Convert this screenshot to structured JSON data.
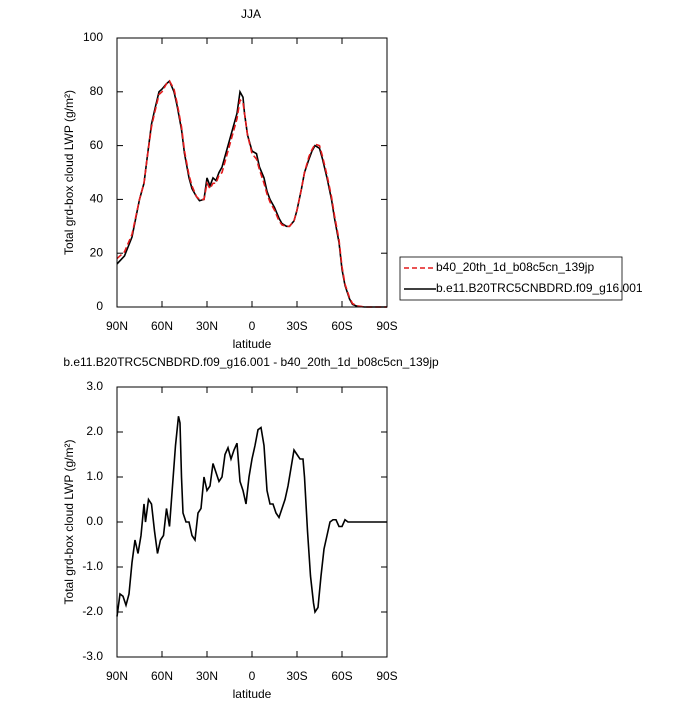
{
  "chart_data": [
    {
      "type": "line",
      "title": "JJA",
      "x_label": "latitude",
      "y_label": "Total grd-box cloud LWP (g/m²)",
      "x": [
        90,
        85,
        80,
        75,
        72,
        70,
        67,
        65,
        62,
        60,
        57,
        55,
        52,
        50,
        47,
        45,
        42,
        40,
        37,
        35,
        32,
        30,
        28,
        26,
        24,
        22,
        20,
        17,
        15,
        12,
        10,
        8,
        6,
        5,
        3,
        0,
        -3,
        -5,
        -8,
        -10,
        -12,
        -15,
        -18,
        -20,
        -23,
        -25,
        -28,
        -30,
        -33,
        -35,
        -38,
        -40,
        -42,
        -45,
        -47,
        -50,
        -53,
        -55,
        -58,
        -60,
        -62,
        -65,
        -67,
        -70,
        -75,
        -80,
        -85,
        -90
      ],
      "xlim": [
        90,
        -90
      ],
      "xticks": [
        {
          "value": 90,
          "label": "90N"
        },
        {
          "value": 60,
          "label": "60N"
        },
        {
          "value": 30,
          "label": "30N"
        },
        0,
        {
          "value": -30,
          "label": "30S"
        },
        {
          "value": -60,
          "label": "60S"
        },
        {
          "value": -90,
          "label": "90S"
        }
      ],
      "ylim": [
        0,
        100
      ],
      "yticks": [
        0,
        20,
        40,
        60,
        80,
        100
      ],
      "legend": "right",
      "series": [
        {
          "name": "b40_20th_1d_b08c5cn_139jp",
          "color": "#e31a1c",
          "linestyle": "dashed",
          "values": [
            18,
            20.5,
            27,
            40,
            46,
            55,
            67,
            72,
            79,
            80,
            83,
            84,
            81,
            76,
            67,
            58,
            49,
            45,
            41,
            40,
            40,
            46,
            44,
            46,
            46,
            49,
            50,
            56,
            60,
            66,
            70,
            77,
            76,
            72,
            64,
            57,
            55,
            51,
            46,
            42,
            39,
            36,
            32,
            30.5,
            30,
            30,
            32,
            36,
            44,
            50,
            56,
            58.5,
            60.5,
            60,
            56,
            49,
            41,
            34,
            25,
            15,
            8.5,
            3.5,
            1.3,
            0.4,
            0,
            0,
            0,
            0
          ]
        },
        {
          "name": "b.e11.B20TRC5CNBDRD.f09_g16.001",
          "color": "#000000",
          "linestyle": "solid",
          "values": [
            16,
            19,
            26,
            40,
            46,
            55,
            68,
            73,
            80,
            81,
            83,
            84,
            80,
            75,
            66,
            57,
            48,
            44,
            41,
            39.5,
            40,
            48,
            45,
            48,
            47,
            50,
            52,
            58,
            62,
            68,
            72,
            80,
            78,
            72,
            64,
            58,
            57,
            52,
            48,
            43,
            40,
            37,
            33,
            31,
            30,
            30,
            32,
            36,
            44,
            50,
            55,
            58,
            60,
            59,
            55,
            48,
            40,
            33,
            24,
            14,
            8,
            3,
            1,
            0.3,
            0,
            0,
            0,
            0
          ]
        }
      ]
    },
    {
      "type": "line",
      "title": "b.e11.B20TRC5CNBDRD.f09_g16.001 - b40_20th_1d_b08c5cn_139jp",
      "x_label": "latitude",
      "y_label": "Total grd-box cloud LWP (g/m²)",
      "x": [
        90,
        88,
        86,
        84,
        82,
        80,
        78,
        76,
        74,
        72,
        71,
        69,
        67,
        65,
        63,
        61,
        59,
        57,
        55,
        53,
        51,
        49,
        48,
        47,
        46,
        44,
        42,
        40,
        38,
        36,
        34,
        32,
        30,
        28,
        26,
        24,
        22,
        20,
        18,
        16,
        14,
        12,
        10,
        8,
        6,
        4,
        2,
        0,
        -2,
        -4,
        -6,
        -8,
        -10,
        -12,
        -14,
        -16,
        -18,
        -20,
        -22,
        -24,
        -26,
        -28,
        -30,
        -32,
        -34,
        -35,
        -37,
        -39,
        -41,
        -42,
        -44,
        -46,
        -48,
        -50,
        -52,
        -54,
        -56,
        -58,
        -60,
        -62,
        -64,
        -70,
        -80,
        -90
      ],
      "xlim": [
        90,
        -90
      ],
      "xticks": [
        {
          "value": 90,
          "label": "90N"
        },
        {
          "value": 60,
          "label": "60N"
        },
        {
          "value": 30,
          "label": "30N"
        },
        0,
        {
          "value": -30,
          "label": "30S"
        },
        {
          "value": -60,
          "label": "60S"
        },
        {
          "value": -90,
          "label": "90S"
        }
      ],
      "ylim": [
        -3,
        3
      ],
      "yticks": [
        {
          "value": -3,
          "label": "-3.0"
        },
        {
          "value": -2,
          "label": "-2.0"
        },
        {
          "value": -1,
          "label": "-1.0"
        },
        {
          "value": 0,
          "label": "0.0"
        },
        {
          "value": 1,
          "label": "1.0"
        },
        {
          "value": 2,
          "label": "2.0"
        },
        {
          "value": 3,
          "label": "3.0"
        }
      ],
      "color": "#000000",
      "values": [
        -2.1,
        -1.6,
        -1.65,
        -1.85,
        -1.6,
        -0.9,
        -0.4,
        -0.7,
        -0.3,
        0.4,
        0,
        0.5,
        0.4,
        -0.2,
        -0.7,
        -0.4,
        -0.3,
        0.3,
        -0.1,
        0.8,
        1.7,
        2.35,
        2.2,
        1,
        0.2,
        0,
        0,
        -0.3,
        -0.4,
        0.2,
        0.3,
        1,
        0.7,
        0.8,
        1.3,
        1.1,
        0.9,
        1,
        1.5,
        1.65,
        1.4,
        1.6,
        1.75,
        0.9,
        0.7,
        0.4,
        1,
        1.4,
        1.7,
        2.05,
        2.1,
        1.7,
        0.7,
        0.4,
        0.4,
        0.2,
        0.1,
        0.3,
        0.5,
        0.8,
        1.2,
        1.6,
        1.5,
        1.4,
        1.4,
        1,
        -0.2,
        -1.2,
        -1.8,
        -2,
        -1.9,
        -1.2,
        -0.6,
        -0.3,
        0,
        0.05,
        0.05,
        -0.1,
        -0.1,
        0.05,
        0,
        0,
        0,
        0
      ]
    }
  ]
}
